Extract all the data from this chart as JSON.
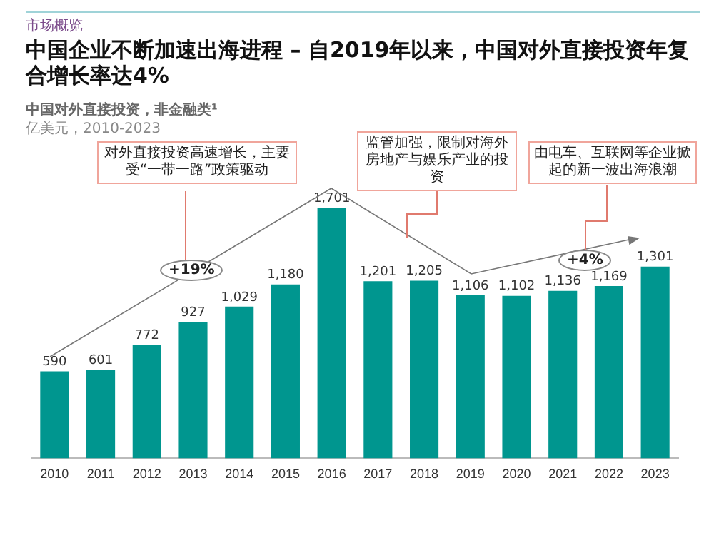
{
  "chart_data": {
    "type": "bar",
    "title": "中国企业不断加速出海进程 – 自2019年以来，中国对外直接投资年复合增长率达4%",
    "subtitle": "中国对外直接投资，非金融类¹",
    "ylabel": "亿美元，2010-2023",
    "categories": [
      "2010",
      "2011",
      "2012",
      "2013",
      "2014",
      "2015",
      "2016",
      "2017",
      "2018",
      "2019",
      "2020",
      "2021",
      "2022",
      "2023"
    ],
    "values": [
      590,
      601,
      772,
      927,
      1029,
      1180,
      1701,
      1201,
      1205,
      1106,
      1102,
      1136,
      1169,
      1301
    ],
    "value_labels": [
      "590",
      "601",
      "772",
      "927",
      "1,029",
      "1,180",
      "1,701",
      "1,201",
      "1,205",
      "1,106",
      "1,102",
      "1,136",
      "1,169",
      "1,301"
    ],
    "color": "#00968f",
    "grid": false,
    "legend": false,
    "annotations": [
      "市场概览",
      "对外直接投资高速增长，主要受“一带一路”政策驱动",
      "+19%",
      "监管加强，限制对海外房地产与娱乐产业的投资",
      "由电车、互联网等企业掀起的新一波出海浪潮",
      "+4%"
    ]
  }
}
